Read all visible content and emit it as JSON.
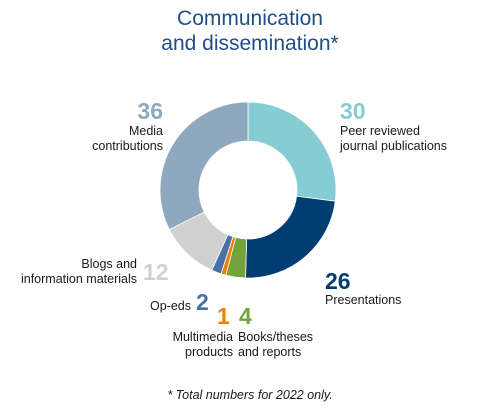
{
  "chart_data": {
    "type": "pie",
    "title": [
      "Communication",
      "and dissemination*"
    ],
    "footnote": "* Total numbers for 2022 only.",
    "slices": [
      {
        "label": [
          "Peer reviewed",
          "journal publications"
        ],
        "value": 30,
        "color": "#86ccd3"
      },
      {
        "label": [
          "Presentations"
        ],
        "value": 26,
        "color": "#003d73"
      },
      {
        "label": [
          "Books/theses",
          "and reports"
        ],
        "value": 4,
        "color": "#74a33b"
      },
      {
        "label": [
          "Multimedia",
          "products"
        ],
        "value": 1,
        "color": "#ee7f00"
      },
      {
        "label": [
          "Op-eds"
        ],
        "value": 2,
        "color": "#4b70a6"
      },
      {
        "label": [
          "Blogs and",
          "information materials"
        ],
        "value": 12,
        "color": "#d0d0d0"
      },
      {
        "label": [
          "Media",
          "contributions"
        ],
        "value": 36,
        "color": "#8ea8c0"
      }
    ]
  }
}
